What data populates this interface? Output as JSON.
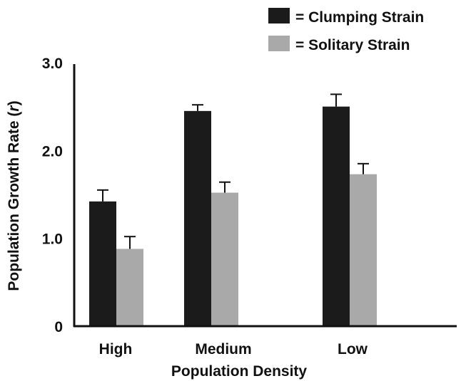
{
  "chart_data": {
    "type": "bar",
    "categories": [
      "High",
      "Medium",
      "Low"
    ],
    "series": [
      {
        "name": "= Clumping Strain",
        "color": "#1b1b1b",
        "values": [
          1.42,
          2.45,
          2.5
        ],
        "errors": [
          0.13,
          0.07,
          0.14
        ]
      },
      {
        "name": "= Solitary Strain",
        "color": "#a9a9a9",
        "values": [
          0.88,
          1.52,
          1.73
        ],
        "errors": [
          0.14,
          0.12,
          0.12
        ]
      }
    ],
    "xlabel": "Population Density",
    "ylabel": "Population Growth Rate (r)",
    "ylabel_main": "Population Growth Rate (",
    "ylabel_var": "r",
    "ylabel_close": ")",
    "yticks": [
      {
        "value": 0,
        "label": "0"
      },
      {
        "value": 1,
        "label": "1.0"
      },
      {
        "value": 2,
        "label": "2.0"
      },
      {
        "value": 3,
        "label": "3.0"
      }
    ],
    "ylim": [
      0,
      3
    ],
    "grid": false,
    "legend_position": "top-right",
    "error_bars": "upper only"
  }
}
